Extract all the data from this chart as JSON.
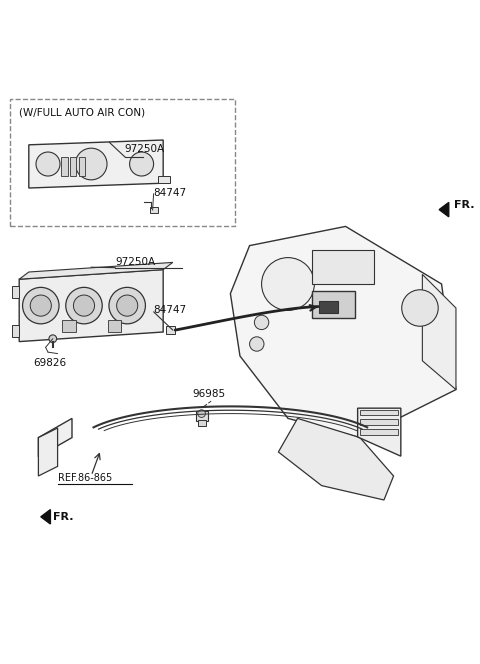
{
  "bg_color": "#ffffff",
  "line_color": "#333333",
  "text_color": "#111111",
  "label_w_full": "(W/FULL AUTO AIR CON)",
  "label_97250A_top": "97250A",
  "label_84747_top": "84747",
  "label_97250A_mid": "97250A",
  "label_84747_mid": "84747",
  "label_69826": "69826",
  "label_96985": "96985",
  "label_ref": "REF.86-865",
  "label_fr_top": "FR.",
  "label_fr_bot": "FR.",
  "figsize": [
    4.8,
    6.64
  ],
  "dpi": 100
}
